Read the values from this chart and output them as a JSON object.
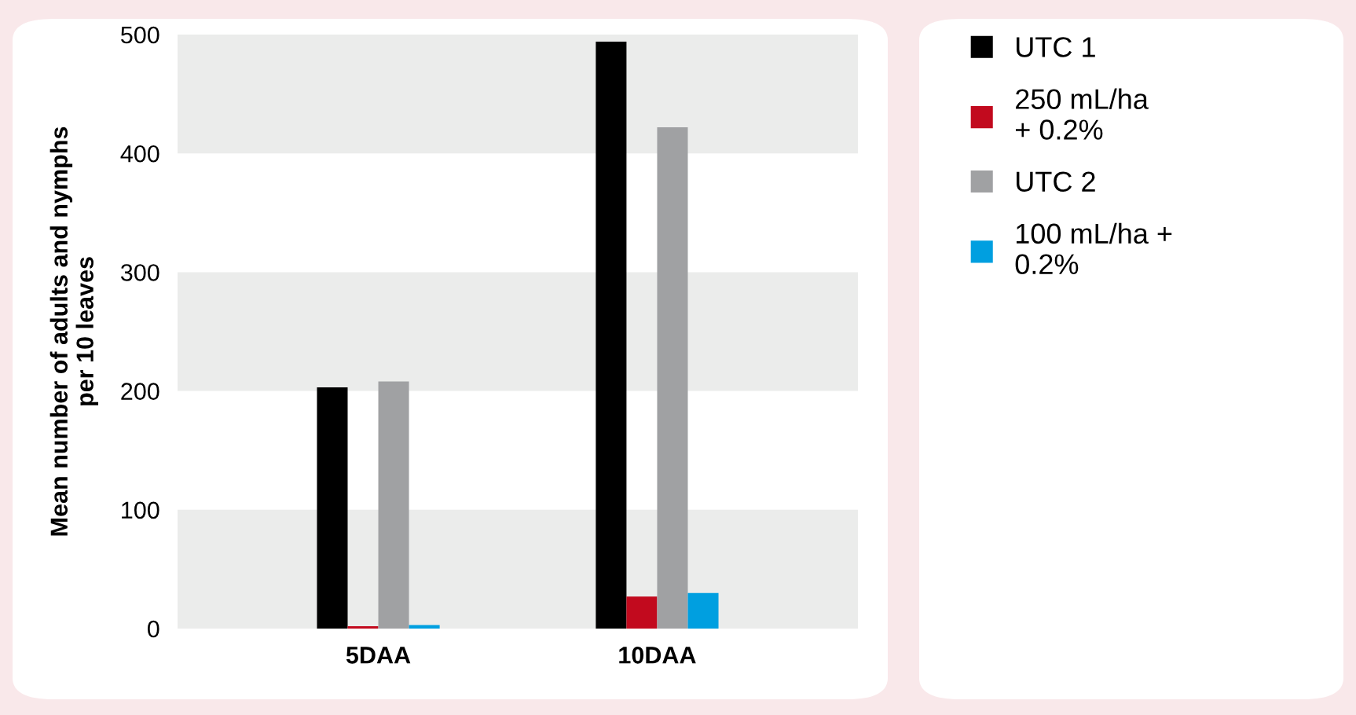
{
  "chart_data": {
    "type": "bar",
    "ylabel": "Mean number of adults and nymphs\nper 10 leaves",
    "categories": [
      "5DAA",
      "10DAA"
    ],
    "series": [
      {
        "name": "UTC 1",
        "color": "#000000",
        "values": [
          203,
          494
        ]
      },
      {
        "name": "250 mL/ha\n+ 0.2%",
        "color": "#c20a1e",
        "values": [
          2,
          27
        ]
      },
      {
        "name": "UTC 2",
        "color": "#a0a1a3",
        "values": [
          208,
          422
        ]
      },
      {
        "name": "100 mL/ha +\n0.2%",
        "color": "#009fe0",
        "values": [
          3,
          30
        ]
      }
    ],
    "ylim": [
      0,
      500
    ],
    "yticks": [
      0,
      100,
      200,
      300,
      400,
      500
    ],
    "bands": [
      {
        "axis": "y",
        "from": 0,
        "to": 100,
        "color": "#ebeceb"
      },
      {
        "axis": "y",
        "from": 200,
        "to": 300,
        "color": "#ebeceb"
      },
      {
        "axis": "y",
        "from": 400,
        "to": 500,
        "color": "#ebeceb"
      }
    ],
    "legend": "right"
  }
}
